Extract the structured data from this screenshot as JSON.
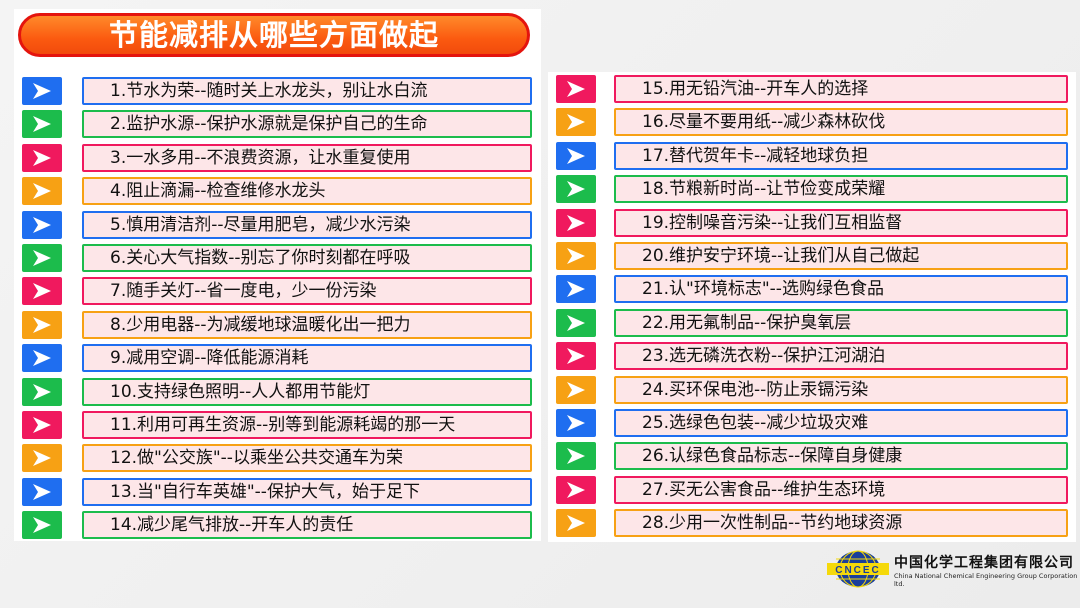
{
  "title": "节能减排从哪些方面做起",
  "colors": {
    "blue": "#1f6ef0",
    "green": "#1cbc4c",
    "pink": "#f0195e",
    "orange": "#f7a114",
    "item_bg": "#fde6e8"
  },
  "icon": "chevron-right-icon",
  "left_items": [
    {
      "text": "1.节水为荣--随时关上水龙头，别让水白流",
      "color": "blue"
    },
    {
      "text": "2.监护水源--保护水源就是保护自己的生命",
      "color": "green"
    },
    {
      "text": "3.一水多用--不浪费资源，让水重复使用",
      "color": "pink"
    },
    {
      "text": "4.阻止滴漏--检查维修水龙头",
      "color": "orange"
    },
    {
      "text": "5.慎用清洁剂--尽量用肥皂，减少水污染",
      "color": "blue"
    },
    {
      "text": "6.关心大气指数--别忘了你时刻都在呼吸",
      "color": "green"
    },
    {
      "text": "7.随手关灯--省一度电，少一份污染",
      "color": "pink"
    },
    {
      "text": "8.少用电器--为减缓地球温暖化出一把力",
      "color": "orange"
    },
    {
      "text": "9.减用空调--降低能源消耗",
      "color": "blue"
    },
    {
      "text": "10.支持绿色照明--人人都用节能灯",
      "color": "green"
    },
    {
      "text": "11.利用可再生资源--别等到能源耗竭的那一天",
      "color": "pink"
    },
    {
      "text": "12.做\"公交族\"--以乘坐公共交通车为荣",
      "color": "orange"
    },
    {
      "text": "13.当\"自行车英雄\"--保护大气，始于足下",
      "color": "blue"
    },
    {
      "text": "14.减少尾气排放--开车人的责任",
      "color": "green"
    }
  ],
  "right_items": [
    {
      "text": "15.用无铅汽油--开车人的选择",
      "color": "pink"
    },
    {
      "text": "16.尽量不要用纸--减少森林砍伐",
      "color": "orange"
    },
    {
      "text": "17.替代贺年卡--减轻地球负担",
      "color": "blue"
    },
    {
      "text": "18.节粮新时尚--让节俭变成荣耀",
      "color": "green"
    },
    {
      "text": "19.控制噪音污染--让我们互相监督",
      "color": "pink"
    },
    {
      "text": "20.维护安宁环境--让我们从自己做起",
      "color": "orange"
    },
    {
      "text": "21.认\"环境标志\"--选购绿色食品",
      "color": "blue"
    },
    {
      "text": "22.用无氟制品--保护臭氧层",
      "color": "green"
    },
    {
      "text": "23.选无磷洗衣粉--保护江河湖泊",
      "color": "pink"
    },
    {
      "text": "24.买环保电池--防止汞镉污染",
      "color": "orange"
    },
    {
      "text": "25.选绿色包装--减少垃圾灾难",
      "color": "blue"
    },
    {
      "text": "26.认绿色食品标志--保障自身健康",
      "color": "green"
    },
    {
      "text": "27.买无公害食品--维护生态环境",
      "color": "pink"
    },
    {
      "text": "28.少用一次性制品--节约地球资源",
      "color": "orange"
    }
  ],
  "logo": {
    "mark": "CNCEC",
    "name_cn": "中国化学工程集团有限公司",
    "name_en": "China National Chemical Engineering Group Corporation ltd."
  }
}
